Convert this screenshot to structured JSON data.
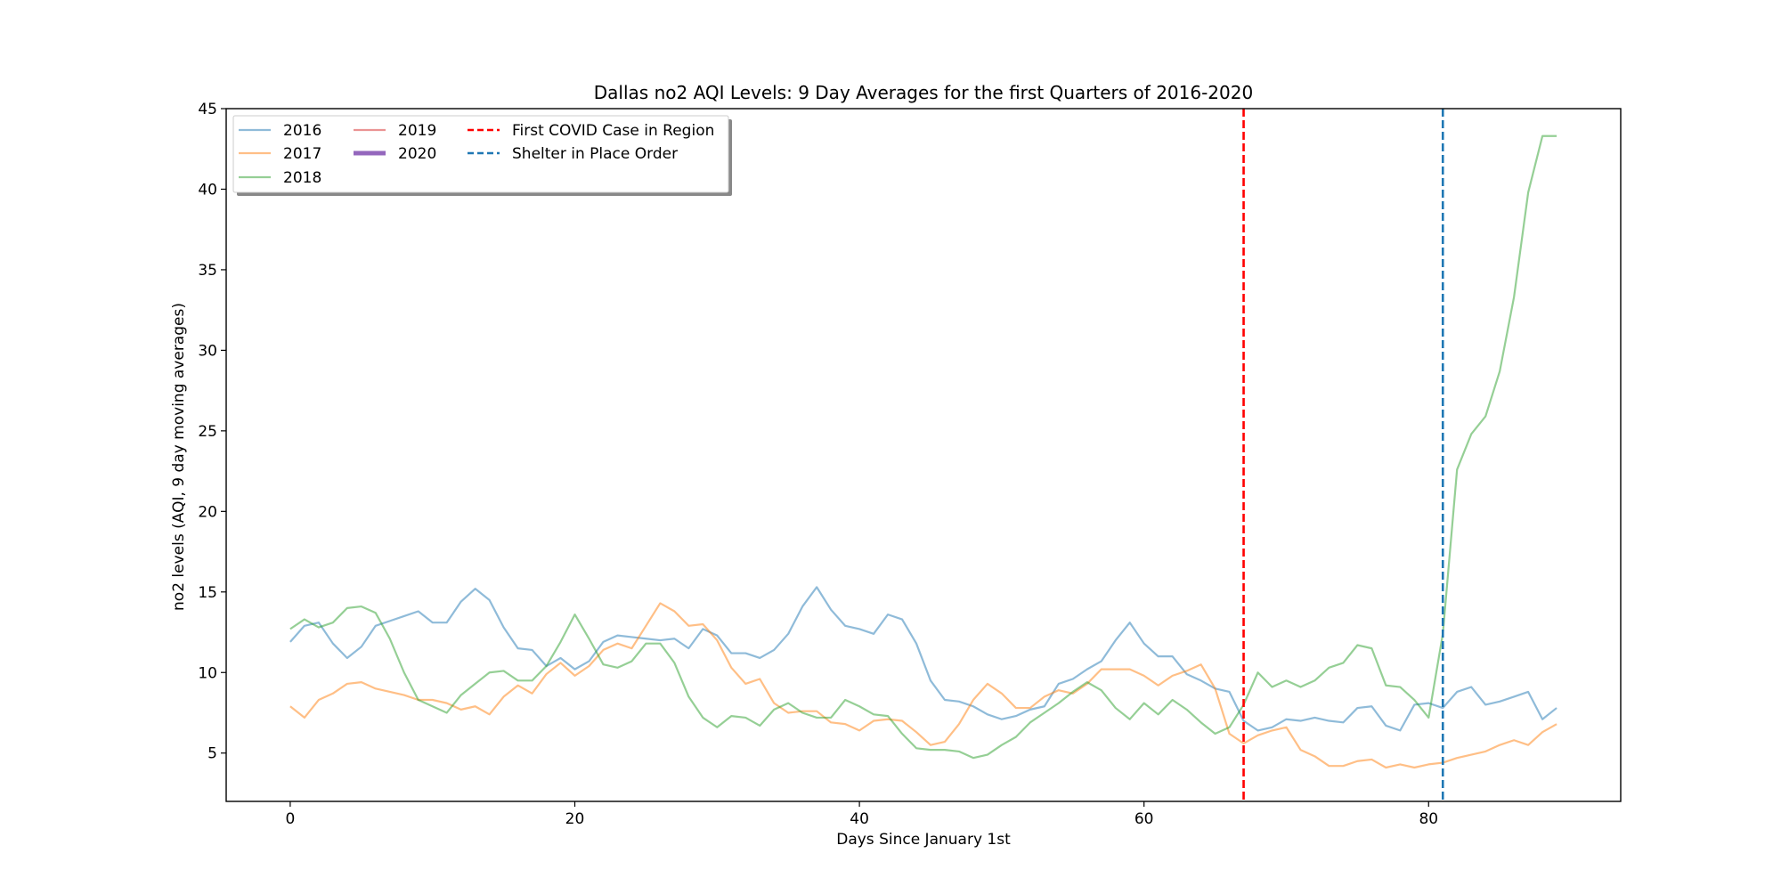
{
  "chart_data": {
    "type": "line",
    "title": "Dallas no2 AQI Levels: 9 Day Averages for the first Quarters of 2016-2020",
    "xlabel": "Days Since January 1st",
    "ylabel": "no2 levels (AQI, 9 day moving averages)",
    "xlim": [
      -4.5,
      93.5
    ],
    "ylim": [
      2.0,
      45.0
    ],
    "xticks": [
      0,
      20,
      40,
      60,
      80
    ],
    "yticks": [
      5,
      10,
      15,
      20,
      25,
      30,
      35,
      40,
      45
    ],
    "grid": false,
    "legend_position": "top-left",
    "series": [
      {
        "name": "2016",
        "color": "#1f77b4",
        "opacity": 0.5,
        "x_start": 0,
        "values": [
          11.9,
          12.9,
          13.1,
          11.8,
          10.9,
          11.6,
          12.9,
          13.2,
          13.5,
          13.8,
          13.1,
          13.1,
          14.4,
          15.2,
          14.5,
          12.8,
          11.5,
          11.4,
          10.4,
          10.9,
          10.2,
          10.7,
          11.9,
          12.3,
          12.2,
          12.1,
          12.0,
          12.1,
          11.5,
          12.7,
          12.3,
          11.2,
          11.2,
          10.9,
          11.4,
          12.4,
          14.1,
          15.3,
          13.9,
          12.9,
          12.7,
          12.4,
          13.6,
          13.3,
          11.8,
          9.5,
          8.3,
          8.2,
          7.9,
          7.4,
          7.1,
          7.3,
          7.7,
          7.9,
          9.3,
          9.6,
          10.2,
          10.7,
          12.0,
          13.1,
          11.8,
          11.0,
          11.0,
          9.9,
          9.5,
          9.0,
          8.8,
          7.0,
          6.4,
          6.6,
          7.1,
          7.0,
          7.2,
          7.0,
          6.9,
          7.8,
          7.9,
          6.7,
          6.4,
          8.0,
          8.1,
          7.8,
          8.8,
          9.1,
          8.0,
          8.2,
          8.5,
          8.8,
          7.1,
          7.8
        ]
      },
      {
        "name": "2017",
        "color": "#ff7f0e",
        "opacity": 0.5,
        "x_start": 0,
        "values": [
          7.9,
          7.2,
          8.3,
          8.7,
          9.3,
          9.4,
          9.0,
          8.8,
          8.6,
          8.3,
          8.3,
          8.1,
          7.7,
          7.9,
          7.4,
          8.5,
          9.2,
          8.7,
          9.9,
          10.6,
          9.8,
          10.4,
          11.4,
          11.8,
          11.5,
          12.9,
          14.3,
          13.8,
          12.9,
          13.0,
          12.0,
          10.3,
          9.3,
          9.6,
          8.1,
          7.5,
          7.6,
          7.6,
          6.9,
          6.8,
          6.4,
          7.0,
          7.1,
          7.0,
          6.3,
          5.5,
          5.7,
          6.8,
          8.3,
          9.3,
          8.7,
          7.8,
          7.8,
          8.5,
          8.9,
          8.7,
          9.3,
          10.2,
          10.2,
          10.2,
          9.8,
          9.2,
          9.8,
          10.1,
          10.5,
          9.0,
          6.2,
          5.6,
          6.1,
          6.4,
          6.6,
          5.2,
          4.8,
          4.2,
          4.2,
          4.5,
          4.6,
          4.1,
          4.3,
          4.1,
          4.3,
          4.4,
          4.7,
          4.9,
          5.1,
          5.5,
          5.8,
          5.5,
          6.3,
          6.8
        ]
      },
      {
        "name": "2018",
        "color": "#2ca02c",
        "opacity": 0.5,
        "x_start": 0,
        "values": [
          12.7,
          13.3,
          12.8,
          13.1,
          14.0,
          14.1,
          13.7,
          12.1,
          10.0,
          8.3,
          7.9,
          7.5,
          8.6,
          9.3,
          10.0,
          10.1,
          9.5,
          9.5,
          10.4,
          11.9,
          13.6,
          12.1,
          10.5,
          10.3,
          10.7,
          11.8,
          11.8,
          10.6,
          8.5,
          7.2,
          6.6,
          7.3,
          7.2,
          6.7,
          7.7,
          8.1,
          7.5,
          7.2,
          7.2,
          8.3,
          7.9,
          7.4,
          7.3,
          6.2,
          5.3,
          5.2,
          5.2,
          5.1,
          4.7,
          4.9,
          5.5,
          6.0,
          6.9,
          7.5,
          8.1,
          8.8,
          9.4,
          8.9,
          7.8,
          7.1,
          8.1,
          7.4,
          8.3,
          7.7,
          6.9,
          6.2,
          6.6,
          8.0,
          10.0,
          9.1,
          9.5,
          9.1,
          9.5,
          10.3,
          10.6,
          11.7,
          11.5,
          9.2,
          9.1,
          8.3,
          7.2,
          12.4,
          22.6,
          24.8,
          25.9,
          28.7,
          33.3,
          39.8,
          43.3,
          43.3
        ]
      },
      {
        "name": "2019",
        "color": "#d62728",
        "opacity": 0.5,
        "x_start": 0,
        "values": []
      },
      {
        "name": "2020",
        "color": "#9467bd",
        "opacity": 1.0,
        "x_start": 0,
        "values": []
      }
    ],
    "vlines": [
      {
        "name": "First COVID Case in Region",
        "x": 67,
        "color": "#ff0000"
      },
      {
        "name": "Shelter in Place Order",
        "x": 81,
        "color": "#1f77b4"
      }
    ]
  }
}
